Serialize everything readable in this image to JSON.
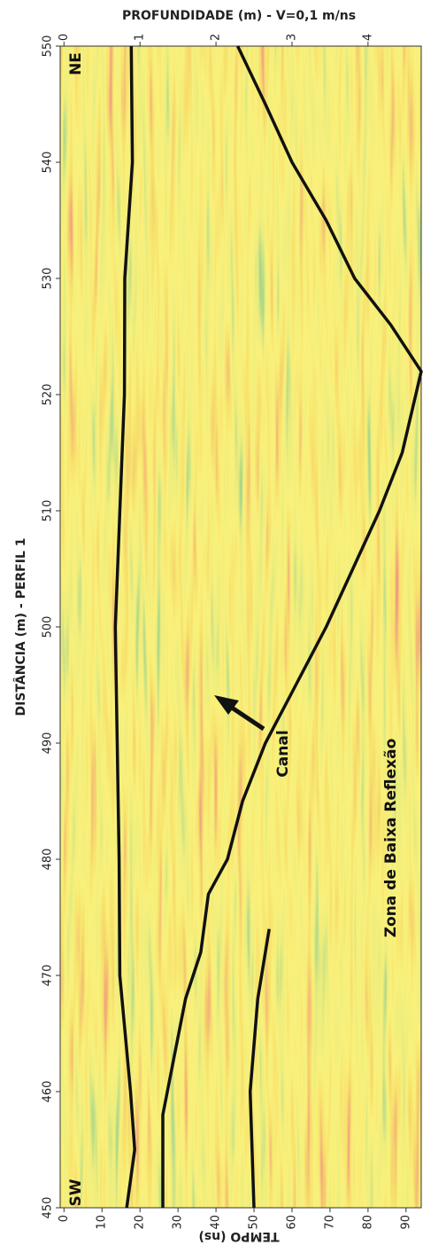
{
  "chart_data": {
    "type": "radargram",
    "title": "PROFUNDIDADE (m) - V=0,1 m/ns",
    "y_label": "DISTÂNCIA (m) - PERFIL 1",
    "x_label": "TEMPO (ns)",
    "ylim": [
      450,
      550
    ],
    "yticks": [
      450,
      460,
      470,
      480,
      490,
      500,
      510,
      520,
      530,
      540,
      550
    ],
    "xlim": [
      -1,
      94
    ],
    "xticks": [
      0,
      10,
      20,
      30,
      40,
      50,
      60,
      70,
      80,
      90
    ],
    "x2lim": [
      -0.05,
      4.7
    ],
    "x2ticks": [
      0,
      1,
      2,
      3,
      4
    ],
    "annotations": [
      "NE",
      "SW",
      "Canal",
      "Zona de Baixa Reflexão"
    ],
    "line_color": "#111111",
    "horizons": [
      {
        "distance": [
          550,
          540,
          530,
          520,
          500,
          480,
          470,
          460,
          455,
          450
        ],
        "tempo": [
          17.7,
          18,
          16,
          15.9,
          13.5,
          14.5,
          14.7,
          17.5,
          18.6,
          16.5
        ]
      },
      {
        "distance": [
          550,
          545,
          540,
          535,
          530,
          526,
          522,
          515,
          510,
          505,
          500,
          495,
          490,
          485,
          480,
          477,
          472,
          468,
          463,
          458,
          450
        ],
        "tempo": [
          45.7,
          53,
          60,
          69,
          76.5,
          86,
          94,
          89,
          83,
          76,
          69,
          61,
          53,
          47,
          43,
          38,
          36,
          32,
          29,
          26,
          26
        ]
      },
      {
        "distance": [
          474,
          468,
          460,
          450
        ],
        "tempo": [
          54,
          51,
          49,
          50
        ]
      }
    ]
  }
}
